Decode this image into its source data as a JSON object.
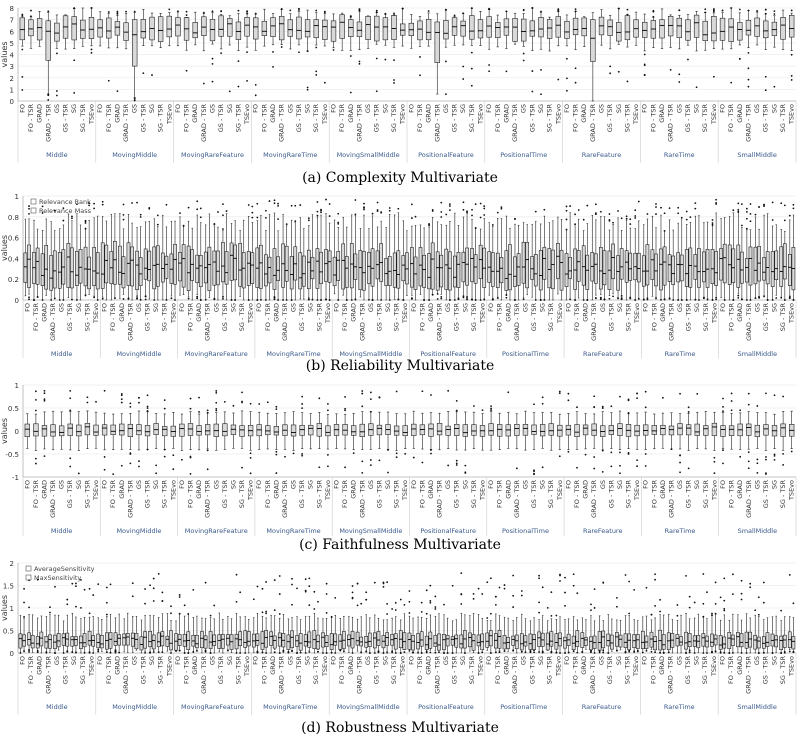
{
  "chart_data": [
    {
      "type": "box",
      "caption": "(a) Complexity Multivariate",
      "ylabel": "values",
      "ylim": [
        0,
        8
      ],
      "yticks": [
        "0",
        "1",
        "2",
        "3",
        "4",
        "5",
        "6",
        "7",
        "8"
      ],
      "legend": [],
      "box_fill": "#d9d9d9",
      "ystats": {
        "q1": 5.4,
        "q3": 6.9,
        "med": 6.3,
        "lo": 4.6,
        "hi": 7.6,
        "spread": 0.6
      },
      "wide_boxes": [
        {
          "group": 0,
          "method": 3,
          "q1": 3.5,
          "q3": 6.9,
          "med": 6.0,
          "lo": 0.6,
          "hi": 7.6
        },
        {
          "group": 1,
          "method": 4,
          "q1": 3.0,
          "q3": 7.0,
          "med": 5.7,
          "lo": 0.3,
          "hi": 7.6
        },
        {
          "group": 5,
          "method": 3,
          "q1": 3.3,
          "q3": 6.8,
          "med": 5.9,
          "lo": 0.6,
          "hi": 7.5
        },
        {
          "group": 7,
          "method": 3,
          "q1": 3.4,
          "q3": 7.0,
          "med": 5.4,
          "lo": 0.0,
          "hi": 7.6
        }
      ]
    },
    {
      "type": "box",
      "caption": "(b) Reliability Multivariate",
      "ylabel": "values",
      "ylim": [
        0,
        1
      ],
      "yticks": [
        "0",
        "0.2",
        "0.4",
        "0.6",
        "0.8",
        "1"
      ],
      "legend": [
        "Relevance Rank",
        "Relevance Mass"
      ],
      "box_fill": "#d9d9d9",
      "ystats": {
        "q1": 0.15,
        "q3": 0.45,
        "med": 0.3,
        "lo": 0.0,
        "hi": 0.75,
        "spread": 0.12
      }
    },
    {
      "type": "box",
      "caption": "(c) Faithfulness Multivariate",
      "ylabel": "values",
      "ylim": [
        -1,
        1
      ],
      "yticks": [
        "-1",
        "-0.5",
        "0",
        "0.5",
        "1"
      ],
      "legend": [],
      "box_fill": "#d9d9d9",
      "ystats": {
        "q1": -0.1,
        "q3": 0.12,
        "med": 0.02,
        "lo": -0.4,
        "hi": 0.4,
        "spread": 0.05
      }
    },
    {
      "type": "box",
      "caption": "(d) Robustness Multivariate",
      "ylabel": "values",
      "ylim": [
        0,
        2
      ],
      "yticks": [
        "0",
        "0.5",
        "1",
        "1.5",
        "2"
      ],
      "legend": [
        "AverageSensitivity",
        "MaxSensitivity"
      ],
      "box_fill": "#d9d9d9",
      "ystats": {
        "q1": 0.12,
        "q3": 0.4,
        "med": 0.22,
        "lo": 0.02,
        "hi": 0.8,
        "spread": 0.12
      }
    }
  ],
  "shared": {
    "groups": [
      "Middle",
      "MovingMiddle",
      "MovingRareFeature",
      "MovingRareTime",
      "MovingSmallMiddle",
      "PositionalFeature",
      "PositionalTime",
      "RareFeature",
      "RareTime",
      "SmallMiddle"
    ],
    "methods": [
      "FO",
      "FO - TSR",
      "GRAD",
      "GRAD - TSR",
      "GS",
      "GS - TSR",
      "SG",
      "SG - TSR",
      "TSEvo"
    ]
  }
}
